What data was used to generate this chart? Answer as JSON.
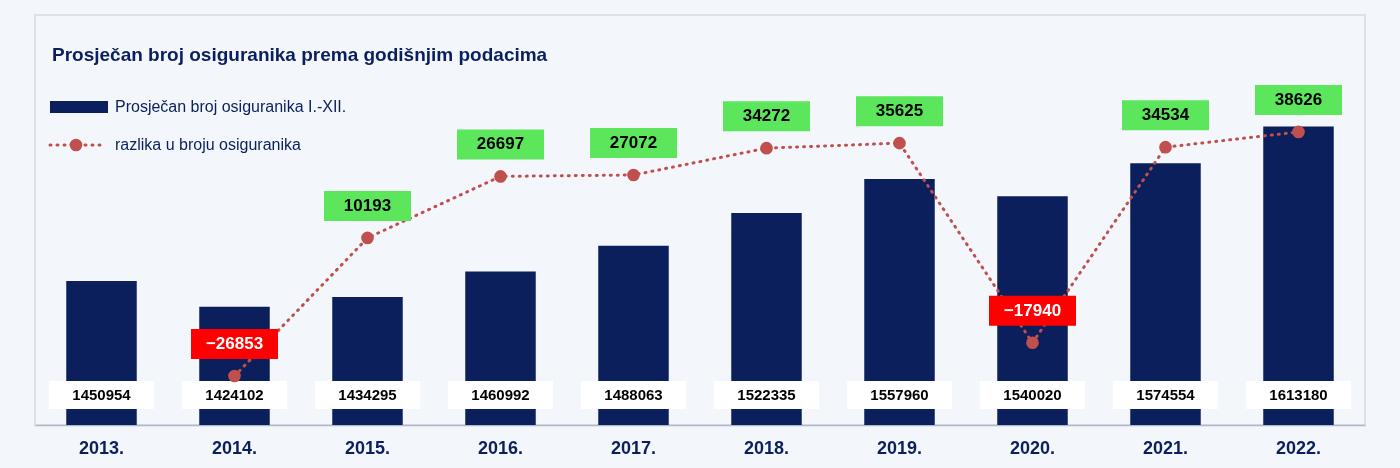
{
  "chart_data": {
    "type": "bar",
    "title": "Prosječan broj osiguranika prema godišnjim podacima",
    "categories": [
      "2013.",
      "2014.",
      "2015.",
      "2016.",
      "2017.",
      "2018.",
      "2019.",
      "2020.",
      "2021.",
      "2022."
    ],
    "series": [
      {
        "name": "Prosječan broj osiguranika I.-XII.",
        "color": "#0b1f5c",
        "values": [
          1450954,
          1424102,
          1434295,
          1460992,
          1488063,
          1522335,
          1557960,
          1540020,
          1574554,
          1613180
        ]
      },
      {
        "name": "razlika u broju osiguranika",
        "type": "line",
        "axis": "y2",
        "color": "#c0504d",
        "values": [
          null,
          -26853,
          10193,
          26697,
          27072,
          34272,
          35625,
          -17940,
          34534,
          38626
        ]
      }
    ],
    "ylim": [
      1300000,
      1730000
    ],
    "y2lim": [
      -40000,
      70000
    ],
    "tick_labels": "x",
    "grid": false,
    "legend": "top left",
    "marker": "circle",
    "line_style": "dotted",
    "data_labels": true
  }
}
